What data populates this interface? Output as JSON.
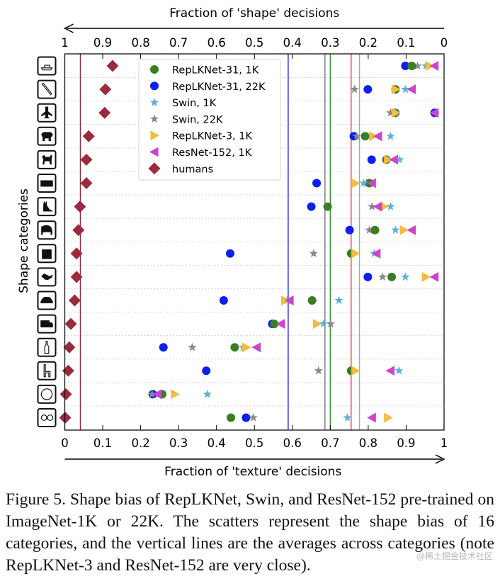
{
  "chart_data": {
    "type": "scatter",
    "top_axis": {
      "label": "Fraction of 'shape' decisions",
      "direction": "right-to-left",
      "ticks": [
        "1",
        "0.9",
        "0.8",
        "0.7",
        "0.6",
        "0.5",
        "0.4",
        "0.3",
        "0.2",
        "0.1",
        "0"
      ]
    },
    "xlabel": "Fraction of 'texture' decisions",
    "ylabel": "Shape categories",
    "xlim": [
      0,
      1
    ],
    "xticks": [
      "0",
      "0.1",
      "0.2",
      "0.3",
      "0.4",
      "0.5",
      "0.6",
      "0.7",
      "0.8",
      "0.9",
      "1"
    ],
    "grid": "horizontal dotted",
    "legend_position": "upper-left inside",
    "categories": [
      "boat",
      "knife",
      "airplane",
      "bear",
      "dog",
      "keyboard",
      "cat",
      "elephant",
      "oven",
      "bird",
      "car",
      "truck",
      "bottle",
      "chair",
      "clock",
      "bicycle"
    ],
    "series": [
      {
        "name": "RepLKNet-31, 1K",
        "marker": "circle",
        "color": "#3a7d22",
        "mean": 0.7,
        "values": [
          0.915,
          0.872,
          0.872,
          0.792,
          0.848,
          0.803,
          0.693,
          0.818,
          0.755,
          0.862,
          0.652,
          0.552,
          0.448,
          0.755,
          0.257,
          0.438
        ]
      },
      {
        "name": "RepLKNet-31, 22K",
        "marker": "circle",
        "color": "#0a1ff0",
        "mean": 0.589,
        "values": [
          0.898,
          0.799,
          0.975,
          0.762,
          0.809,
          0.664,
          0.65,
          0.751,
          0.436,
          0.799,
          0.419,
          0.547,
          0.26,
          0.373,
          0.232,
          0.478
        ]
      },
      {
        "name": "Swin, 1K",
        "marker": "star",
        "color": "#5fb0e0",
        "mean": 0.777,
        "values": [
          0.952,
          0.898,
          0.872,
          0.859,
          0.883,
          0.788,
          0.859,
          0.872,
          0.816,
          0.898,
          0.723,
          0.682,
          0.47,
          0.881,
          0.376,
          0.745
        ]
      },
      {
        "name": "Swin, 22K",
        "marker": "star",
        "color": "#8a8a8a",
        "mean": 0.686,
        "values": [
          0.93,
          0.764,
          0.859,
          0.77,
          0.848,
          0.796,
          0.81,
          0.803,
          0.656,
          0.838,
          0.587,
          0.701,
          0.336,
          0.669,
          0.23,
          0.497
        ]
      },
      {
        "name": "RepLKNet-3, 1K",
        "marker": "triangle-right",
        "color": "#f0bc45",
        "mean": 0.755,
        "values": [
          0.962,
          0.872,
          0.872,
          0.813,
          0.852,
          0.766,
          0.841,
          0.894,
          0.766,
          0.952,
          0.581,
          0.665,
          0.478,
          0.766,
          0.29,
          0.852
        ]
      },
      {
        "name": "ResNet-152, 1K",
        "marker": "triangle-left",
        "color": "#cc44cc",
        "mean": 0.755,
        "values": [
          0.975,
          0.915,
          0.975,
          0.826,
          0.868,
          0.81,
          0.826,
          0.915,
          0.822,
          0.975,
          0.593,
          0.57,
          0.506,
          0.859,
          0.245,
          0.81
        ]
      },
      {
        "name": "humans",
        "marker": "diamond",
        "color": "#9b2a3f",
        "mean": 0.041,
        "values": [
          0.126,
          0.107,
          0.105,
          0.063,
          0.057,
          0.057,
          0.04,
          0.036,
          0.031,
          0.031,
          0.026,
          0.016,
          0.012,
          0.009,
          0.003,
          0.001
        ]
      }
    ],
    "mean_line_colors": {
      "RepLKNet-31, 1K": "#3a8a3a",
      "RepLKNet-31, 22K": "#1a2fd0",
      "Swin, 1K": "#6ab8dc",
      "Swin, 22K": "#777777",
      "RepLKNet-3 / ResNet-152": "#e0406a",
      "humans": "#8b2a3a"
    }
  },
  "caption": "Figure 5.  Shape bias of RepLKNet, Swin, and ResNet-152 pre-trained on ImageNet-1K or 22K. The scatters represent the shape bias of 16 categories, and the vertical lines are the averages across categories (note RepLKNet-3 and ResNet-152 are very close).",
  "watermark": "@稀土掘金技术社区"
}
